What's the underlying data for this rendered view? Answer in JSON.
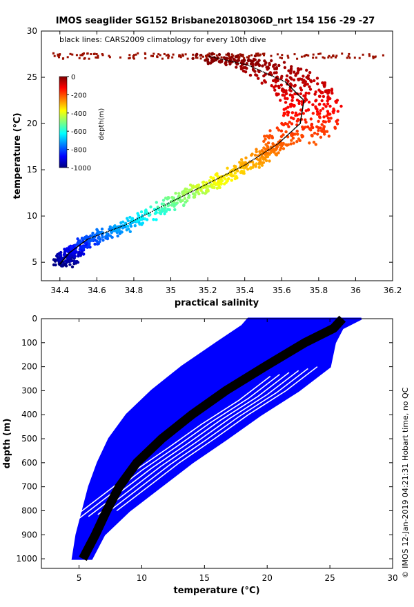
{
  "title": "IMOS seaglider SG152 Brisbane20180306D_nrt 154  156  -29  -27",
  "side_label": "© IMOS 12-Jan-2019 04:21:31 Hobart time, no QC",
  "colors": {
    "climatology": "#000000",
    "profiles": "#0000ff",
    "colormap": [
      "#00007f",
      "#0000ff",
      "#007fff",
      "#00ffff",
      "#7fff7f",
      "#ffff00",
      "#ff7f00",
      "#ff0000",
      "#7f0000"
    ]
  },
  "chart_data": [
    {
      "type": "scatter",
      "title": "IMOS seaglider SG152 Brisbane20180306D_nrt 154  156  -29  -27",
      "annotation": "black lines: CARS2009 climatology for every 10th dive",
      "xlabel": "practical salinity",
      "ylabel": "temperature (°C)",
      "xlim": [
        34.3,
        36.2
      ],
      "ylim": [
        3,
        30
      ],
      "xticks": [
        "34.4",
        "34.6",
        "34.8",
        "35",
        "35.2",
        "35.4",
        "35.6",
        "35.8",
        "36",
        "36.2"
      ],
      "xtick_values": [
        34.4,
        34.6,
        34.8,
        35.0,
        35.2,
        35.4,
        35.6,
        35.8,
        36.0,
        36.2
      ],
      "yticks": [
        "5",
        "10",
        "15",
        "20",
        "25",
        "30"
      ],
      "ytick_values": [
        5,
        10,
        15,
        20,
        25,
        30
      ],
      "colorbar": {
        "label": "depth(m)",
        "range": [
          -1000,
          0
        ],
        "ticks": [
          "0",
          "-200",
          "-400",
          "-600",
          "-800",
          "-1000"
        ],
        "tick_values": [
          0,
          -200,
          -400,
          -600,
          -800,
          -1000
        ]
      },
      "grid": false,
      "ts_curve": [
        {
          "s": 34.4,
          "t": 4.8,
          "d": -1000
        },
        {
          "s": 34.45,
          "t": 6.0,
          "d": -920
        },
        {
          "s": 34.55,
          "t": 7.5,
          "d": -800
        },
        {
          "s": 34.75,
          "t": 9.0,
          "d": -700
        },
        {
          "s": 35.0,
          "t": 11.5,
          "d": -520
        },
        {
          "s": 35.2,
          "t": 13.5,
          "d": -400
        },
        {
          "s": 35.4,
          "t": 15.5,
          "d": -300
        },
        {
          "s": 35.58,
          "t": 17.8,
          "d": -220
        },
        {
          "s": 35.7,
          "t": 20.0,
          "d": -160
        },
        {
          "s": 35.72,
          "t": 22.5,
          "d": -110
        },
        {
          "s": 35.62,
          "t": 24.5,
          "d": -60
        },
        {
          "s": 35.42,
          "t": 26.3,
          "d": -25
        },
        {
          "s": 35.2,
          "t": 27.3,
          "d": 0
        }
      ],
      "surface_band": {
        "t": 27.3,
        "s_range": [
          34.35,
          36.15
        ]
      }
    },
    {
      "type": "line",
      "xlabel": "temperature (°C)",
      "ylabel": "depth (m)",
      "xlim": [
        2,
        30
      ],
      "ylim": [
        1040,
        0
      ],
      "xticks": [
        "5",
        "10",
        "15",
        "20",
        "25",
        "30"
      ],
      "xtick_values": [
        5,
        10,
        15,
        20,
        25,
        30
      ],
      "yticks": [
        "0",
        "100",
        "200",
        "300",
        "400",
        "500",
        "600",
        "700",
        "800",
        "900",
        "1000"
      ],
      "ytick_values": [
        0,
        100,
        200,
        300,
        400,
        500,
        600,
        700,
        800,
        900,
        1000
      ],
      "grid": false,
      "envelope_cold": [
        [
          4.5,
          1000
        ],
        [
          4.8,
          900
        ],
        [
          5.3,
          800
        ],
        [
          5.8,
          700
        ],
        [
          6.5,
          600
        ],
        [
          7.4,
          500
        ],
        [
          8.8,
          400
        ],
        [
          10.8,
          300
        ],
        [
          13.2,
          200
        ],
        [
          16.0,
          100
        ],
        [
          18.0,
          30
        ],
        [
          18.5,
          0
        ]
      ],
      "envelope_warm": [
        [
          6.0,
          1000
        ],
        [
          7.0,
          900
        ],
        [
          9.0,
          800
        ],
        [
          11.5,
          700
        ],
        [
          14.0,
          600
        ],
        [
          16.8,
          500
        ],
        [
          19.5,
          400
        ],
        [
          22.5,
          300
        ],
        [
          25.0,
          200
        ],
        [
          25.4,
          100
        ],
        [
          26.0,
          40
        ],
        [
          27.5,
          0
        ]
      ],
      "climatology": [
        [
          5.3,
          1000
        ],
        [
          6.3,
          900
        ],
        [
          7.2,
          800
        ],
        [
          8.2,
          700
        ],
        [
          9.6,
          600
        ],
        [
          11.6,
          500
        ],
        [
          14.0,
          400
        ],
        [
          16.7,
          300
        ],
        [
          19.8,
          200
        ],
        [
          23.0,
          100
        ],
        [
          25.3,
          40
        ],
        [
          26.0,
          0
        ]
      ]
    }
  ]
}
